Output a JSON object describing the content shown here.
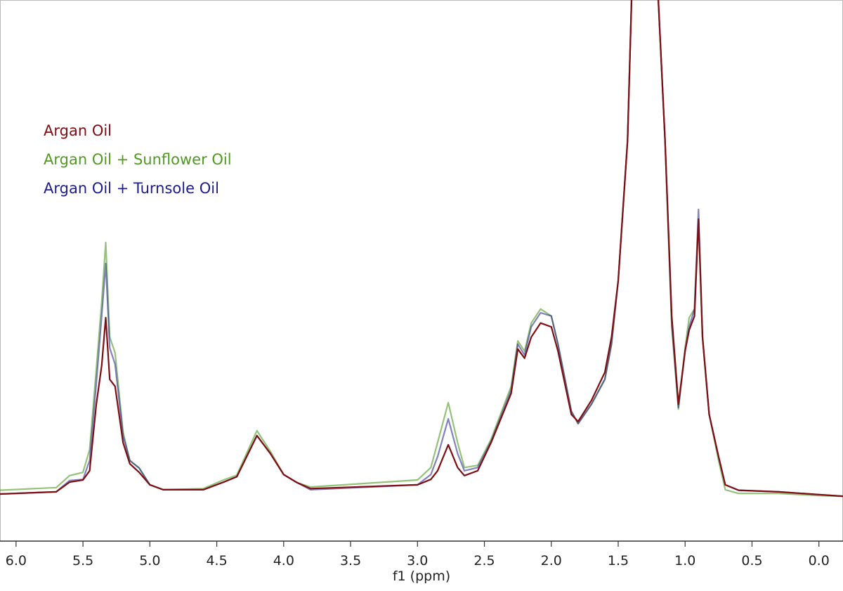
{
  "chart_data": {
    "type": "line",
    "x_label": "f1 (ppm)",
    "x": [
      6.12,
      5.7,
      5.6,
      5.5,
      5.45,
      5.4,
      5.36,
      5.33,
      5.3,
      5.26,
      5.2,
      5.15,
      5.08,
      5.0,
      4.9,
      4.6,
      4.45,
      4.35,
      4.2,
      4.1,
      4.0,
      3.9,
      3.8,
      3.0,
      2.9,
      2.85,
      2.77,
      2.7,
      2.65,
      2.55,
      2.45,
      2.3,
      2.25,
      2.2,
      2.15,
      2.08,
      2.0,
      1.95,
      1.85,
      1.8,
      1.7,
      1.6,
      1.55,
      1.5,
      1.43,
      1.4,
      1.3,
      1.2,
      1.15,
      1.1,
      1.05,
      1.0,
      0.97,
      0.93,
      0.9,
      0.87,
      0.82,
      0.75,
      0.7,
      0.6,
      0.3,
      0.0,
      -0.18
    ],
    "series": [
      {
        "name": "Argan Oil",
        "color": "#7f0d12",
        "values": [
          8.7,
          9.1,
          10.9,
          11.3,
          13.0,
          25.3,
          32.5,
          41.3,
          29.9,
          28.6,
          18.2,
          14.3,
          12.7,
          10.4,
          9.5,
          9.5,
          10.9,
          11.9,
          19.5,
          16.2,
          12.3,
          10.8,
          9.7,
          10.4,
          11.4,
          13.0,
          17.8,
          13.6,
          12.1,
          13.0,
          18.2,
          27.3,
          35.5,
          33.8,
          37.7,
          40.3,
          39.6,
          35.1,
          23.4,
          22.1,
          26.0,
          31.2,
          37.7,
          48.1,
          74.0,
          100,
          152,
          100,
          74.0,
          41.6,
          25.3,
          35.1,
          39.0,
          41.6,
          59.5,
          37.7,
          23.4,
          15.6,
          10.4,
          9.4,
          9.1,
          8.6,
          8.3
        ]
      },
      {
        "name": "Argan Oil + Sunflower Oil",
        "color": "#4f9a1f",
        "values": [
          9.4,
          9.9,
          12.1,
          12.7,
          16.9,
          31.8,
          44.2,
          55.2,
          37.7,
          34.8,
          20.1,
          14.9,
          13.5,
          10.4,
          9.5,
          9.7,
          11.3,
          12.2,
          20.4,
          16.6,
          12.3,
          10.8,
          10.0,
          11.3,
          13.6,
          18.2,
          25.6,
          18.2,
          13.6,
          14.0,
          18.8,
          28.6,
          37.0,
          35.1,
          40.3,
          42.9,
          41.6,
          36.4,
          24.0,
          21.7,
          25.3,
          29.9,
          36.4,
          48.1,
          74.0,
          100,
          152,
          100,
          74.0,
          39.6,
          24.4,
          35.7,
          41.3,
          42.9,
          59.5,
          37.7,
          23.4,
          14.9,
          9.5,
          8.8,
          8.8,
          8.4,
          8.3
        ]
      },
      {
        "name": "Argan Oil + Turnsole Oil",
        "color": "#1c1c8c",
        "values": [
          8.7,
          9.1,
          11.2,
          11.4,
          14.9,
          29.2,
          41.6,
          51.3,
          35.7,
          32.7,
          19.5,
          14.9,
          13.5,
          10.4,
          9.5,
          9.5,
          10.9,
          11.9,
          19.5,
          16.2,
          12.3,
          10.8,
          9.5,
          10.4,
          12.3,
          15.6,
          22.6,
          16.2,
          13.0,
          13.6,
          18.4,
          27.9,
          36.4,
          34.4,
          39.6,
          42.2,
          41.6,
          36.4,
          24.0,
          21.7,
          25.3,
          29.9,
          36.4,
          48.1,
          74.0,
          100,
          152,
          100,
          74.0,
          40.3,
          24.7,
          35.1,
          39.6,
          42.9,
          61.3,
          37.7,
          23.4,
          15.6,
          10.4,
          9.4,
          9.1,
          8.6,
          8.3
        ]
      }
    ],
    "xlim": [
      6.12,
      -0.18
    ],
    "ylim": [
      0,
      100
    ],
    "xticks": [
      {
        "value": 6.0,
        "label": "6.0"
      },
      {
        "value": 5.5,
        "label": "5.5"
      },
      {
        "value": 5.0,
        "label": "5.0"
      },
      {
        "value": 4.5,
        "label": "4.5"
      },
      {
        "value": 4.0,
        "label": "4.0"
      },
      {
        "value": 3.5,
        "label": "3.5"
      },
      {
        "value": 3.0,
        "label": "3.0"
      },
      {
        "value": 2.5,
        "label": "2.5"
      },
      {
        "value": 2.0,
        "label": "2.0"
      },
      {
        "value": 1.5,
        "label": "1.5"
      },
      {
        "value": 1.0,
        "label": "1.0"
      },
      {
        "value": 0.5,
        "label": "0.5"
      },
      {
        "value": 0.0,
        "label": "0.0"
      }
    ],
    "legend": "upper left"
  }
}
